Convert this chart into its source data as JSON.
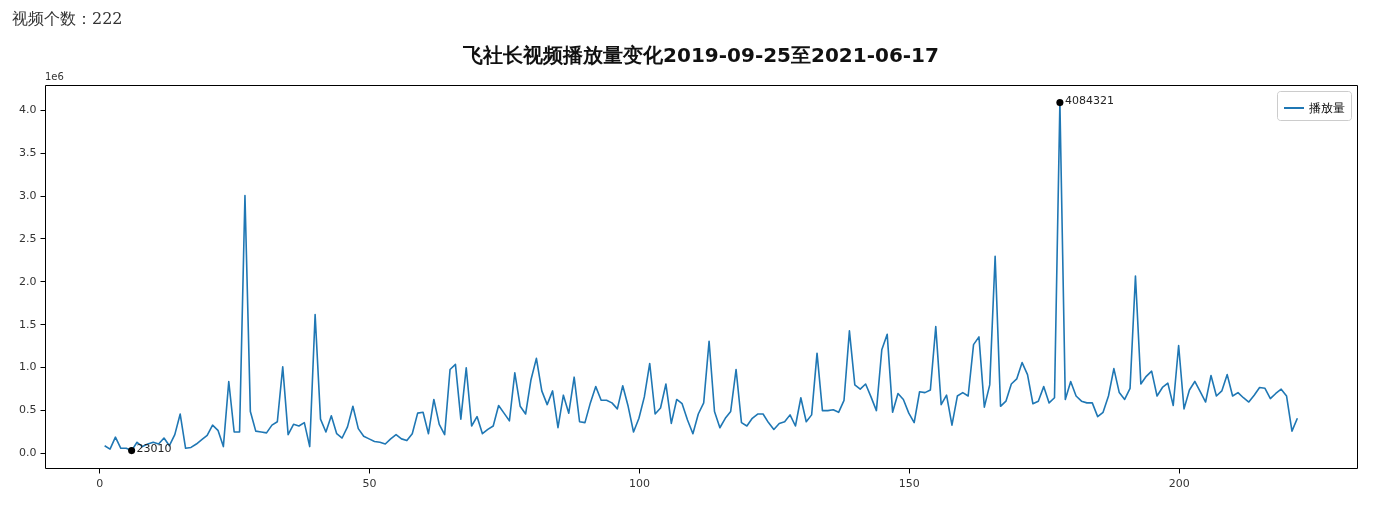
{
  "chart_data": {
    "type": "line",
    "title": "飞社长视频播放量变化2019-09-25至2021-06-17",
    "annotations": [
      "视频个数：222",
      "1e6",
      {
        "text": "23010",
        "x": 6,
        "y": 0.02301
      },
      {
        "text": "4084321",
        "x": 178,
        "y": 4.084321
      }
    ],
    "x": [
      1,
      2,
      3,
      4,
      5,
      6,
      7,
      8,
      9,
      10,
      11,
      12,
      13,
      14,
      15,
      16,
      17,
      18,
      19,
      20,
      21,
      22,
      23,
      24,
      25,
      26,
      27,
      28,
      29,
      30,
      31,
      32,
      33,
      34,
      35,
      36,
      37,
      38,
      39,
      40,
      41,
      42,
      43,
      44,
      45,
      46,
      47,
      48,
      49,
      50,
      51,
      52,
      53,
      54,
      55,
      56,
      57,
      58,
      59,
      60,
      61,
      62,
      63,
      64,
      65,
      66,
      67,
      68,
      69,
      70,
      71,
      72,
      73,
      74,
      75,
      76,
      77,
      78,
      79,
      80,
      81,
      82,
      83,
      84,
      85,
      86,
      87,
      88,
      89,
      90,
      91,
      92,
      93,
      94,
      95,
      96,
      97,
      98,
      99,
      100,
      101,
      102,
      103,
      104,
      105,
      106,
      107,
      108,
      109,
      110,
      111,
      112,
      113,
      114,
      115,
      116,
      117,
      118,
      119,
      120,
      121,
      122,
      123,
      124,
      125,
      126,
      127,
      128,
      129,
      130,
      131,
      132,
      133,
      134,
      135,
      136,
      137,
      138,
      139,
      140,
      141,
      142,
      143,
      144,
      145,
      146,
      147,
      148,
      149,
      150,
      151,
      152,
      153,
      154,
      155,
      156,
      157,
      158,
      159,
      160,
      161,
      162,
      163,
      164,
      165,
      166,
      167,
      168,
      169,
      170,
      171,
      172,
      173,
      174,
      175,
      176,
      177,
      178,
      179,
      180,
      181,
      182,
      183,
      184,
      185,
      186,
      187,
      188,
      189,
      190,
      191,
      192,
      193,
      194,
      195,
      196,
      197,
      198,
      199,
      200,
      201,
      202,
      203,
      204,
      205,
      206,
      207,
      208,
      209,
      210,
      211,
      212,
      213,
      214,
      215,
      216,
      217,
      218,
      219,
      220,
      221,
      222
    ],
    "series": [
      {
        "name": "播放量",
        "color": "#1f77b4",
        "values": [
          0.08,
          0.04,
          0.18,
          0.05,
          0.05,
          0.02301,
          0.12,
          0.07,
          0.1,
          0.12,
          0.1,
          0.17,
          0.08,
          0.21,
          0.45,
          0.05,
          0.06,
          0.1,
          0.15,
          0.2,
          0.32,
          0.26,
          0.07,
          0.83,
          0.24,
          0.24,
          3.0,
          0.48,
          0.25,
          0.24,
          0.23,
          0.32,
          0.36,
          1.0,
          0.21,
          0.33,
          0.31,
          0.35,
          0.07,
          1.61,
          0.39,
          0.24,
          0.43,
          0.22,
          0.17,
          0.3,
          0.54,
          0.28,
          0.19,
          0.16,
          0.13,
          0.12,
          0.1,
          0.16,
          0.21,
          0.16,
          0.14,
          0.22,
          0.46,
          0.47,
          0.22,
          0.62,
          0.33,
          0.21,
          0.97,
          1.03,
          0.39,
          0.99,
          0.31,
          0.42,
          0.22,
          0.27,
          0.31,
          0.55,
          0.46,
          0.37,
          0.93,
          0.54,
          0.45,
          0.85,
          1.1,
          0.72,
          0.56,
          0.72,
          0.29,
          0.67,
          0.46,
          0.88,
          0.36,
          0.35,
          0.58,
          0.77,
          0.61,
          0.61,
          0.58,
          0.51,
          0.78,
          0.54,
          0.24,
          0.4,
          0.65,
          1.04,
          0.45,
          0.52,
          0.8,
          0.34,
          0.62,
          0.57,
          0.38,
          0.22,
          0.45,
          0.58,
          1.3,
          0.48,
          0.29,
          0.4,
          0.48,
          0.97,
          0.35,
          0.31,
          0.4,
          0.45,
          0.45,
          0.35,
          0.27,
          0.34,
          0.36,
          0.44,
          0.31,
          0.64,
          0.36,
          0.44,
          1.16,
          0.49,
          0.49,
          0.5,
          0.47,
          0.61,
          1.42,
          0.79,
          0.74,
          0.8,
          0.65,
          0.49,
          1.2,
          1.38,
          0.47,
          0.69,
          0.62,
          0.46,
          0.35,
          0.71,
          0.7,
          0.73,
          1.47,
          0.56,
          0.67,
          0.32,
          0.66,
          0.7,
          0.66,
          1.26,
          1.35,
          0.53,
          0.79,
          2.29,
          0.54,
          0.6,
          0.8,
          0.86,
          1.05,
          0.91,
          0.57,
          0.6,
          0.77,
          0.58,
          0.64,
          4.084321,
          0.62,
          0.83,
          0.66,
          0.6,
          0.58,
          0.58,
          0.42,
          0.47,
          0.66,
          0.98,
          0.7,
          0.62,
          0.75,
          2.06,
          0.8,
          0.89,
          0.95,
          0.66,
          0.76,
          0.81,
          0.55,
          1.25,
          0.51,
          0.73,
          0.83,
          0.71,
          0.59,
          0.9,
          0.66,
          0.72,
          0.91,
          0.66,
          0.7,
          0.64,
          0.59,
          0.67,
          0.76,
          0.75,
          0.63,
          0.69,
          0.74,
          0.66,
          0.25,
          0.4
        ]
      }
    ],
    "xlim": [
      -10.05,
      233.05
    ],
    "xticks": [
      0,
      50,
      100,
      150,
      200
    ],
    "ylim": [
      -0.18,
      4.29
    ],
    "yticks": [
      {
        "value": 0,
        "label": "0.0"
      },
      0.5,
      {
        "value": 1,
        "label": "1.0"
      },
      1.5,
      {
        "value": 2,
        "label": "2.0"
      },
      2.5,
      {
        "value": 3,
        "label": "3.0"
      },
      3.5,
      {
        "value": 4,
        "label": "4.0"
      }
    ],
    "legend": "top right",
    "line_style": "solid"
  }
}
